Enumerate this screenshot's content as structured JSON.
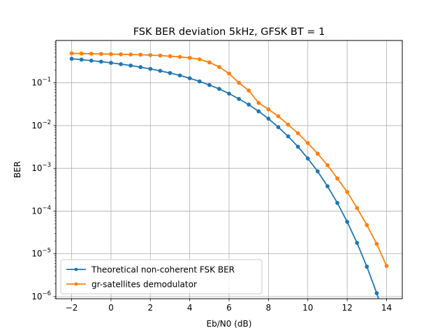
{
  "chart_data": {
    "type": "line",
    "title": "FSK BER deviation 5kHz, GFSK BT = 1",
    "xlabel": "Eb/N0 (dB)",
    "ylabel": "BER",
    "xlim": [
      -2.8,
      14.8
    ],
    "ylim": [
      8.9e-07,
      0.98
    ],
    "yscale": "log",
    "grid": true,
    "legend_position": "lower-left",
    "x_ticks": [
      -2,
      0,
      2,
      4,
      6,
      8,
      10,
      12,
      14
    ],
    "x_tick_labels": [
      "−2",
      "0",
      "2",
      "4",
      "6",
      "8",
      "10",
      "12",
      "14"
    ],
    "y_ticks": [
      1e-06,
      1e-05,
      0.0001,
      0.001,
      0.01,
      0.1
    ],
    "y_tick_labels": [
      {
        "base": "10",
        "exp": "−6"
      },
      {
        "base": "10",
        "exp": "−5"
      },
      {
        "base": "10",
        "exp": "−4"
      },
      {
        "base": "10",
        "exp": "−3"
      },
      {
        "base": "10",
        "exp": "−2"
      },
      {
        "base": "10",
        "exp": "−1"
      }
    ],
    "x": [
      -2,
      -1.5,
      -1,
      -0.5,
      0,
      0.5,
      1,
      1.5,
      2,
      2.5,
      3,
      3.5,
      4,
      4.5,
      5,
      5.5,
      6,
      6.5,
      7,
      7.5,
      8,
      8.5,
      9,
      9.5,
      10,
      10.5,
      11,
      11.5,
      12,
      12.5,
      13,
      13.5,
      14
    ],
    "series": [
      {
        "name": "Theoretical non-coherent FSK BER",
        "color": "#1f77b4",
        "values": [
          0.366,
          0.349,
          0.331,
          0.313,
          0.294,
          0.274,
          0.254,
          0.233,
          0.212,
          0.191,
          0.17,
          0.149,
          0.128,
          0.108,
          0.089,
          0.072,
          0.056,
          0.042,
          0.031,
          0.0215,
          0.0145,
          0.0092,
          0.0056,
          0.0032,
          0.0017,
          0.00085,
          0.00038,
          0.000155,
          5.6e-05,
          1.8e-05,
          5e-06,
          1.2e-06,
          2.4e-07
        ]
      },
      {
        "name": "gr-satellites demodulator",
        "color": "#ff7f0e",
        "values": [
          0.49,
          0.485,
          0.48,
          0.475,
          0.47,
          0.465,
          0.46,
          0.455,
          0.445,
          0.435,
          0.42,
          0.405,
          0.385,
          0.355,
          0.3,
          0.235,
          0.165,
          0.1,
          0.066,
          0.034,
          0.024,
          0.0165,
          0.0105,
          0.0066,
          0.0039,
          0.0022,
          0.00118,
          0.00058,
          0.00028,
          0.000118,
          4.7e-05,
          1.7e-05,
          5.2e-06
        ]
      }
    ]
  }
}
